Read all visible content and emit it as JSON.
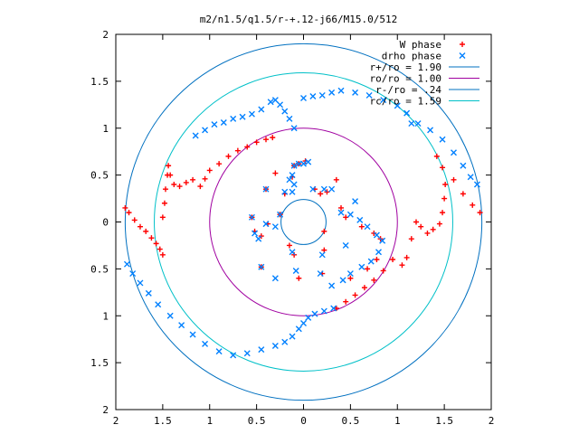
{
  "chart_data": {
    "type": "scatter",
    "title": "m2/n1.5/q1.5/r-+.12-j66/M15.0/512",
    "xlim": [
      -2,
      2
    ],
    "ylim": [
      -2,
      2
    ],
    "x_tick_values": [
      -2,
      -1.5,
      -1,
      -0.5,
      0,
      0.5,
      1,
      1.5,
      2
    ],
    "x_tick_labels": [
      "2",
      "1.5",
      "1",
      "0.5",
      "0",
      "0.5",
      "1",
      "1.5",
      "2"
    ],
    "y_tick_values": [
      2,
      1.5,
      1,
      0.5,
      0,
      -0.5,
      -1,
      -1.5,
      -2
    ],
    "y_tick_labels": [
      "2",
      "1.5",
      "1",
      "0.5",
      "0",
      "0.5",
      "1",
      "1.5",
      "2"
    ],
    "legend_position": "top-right",
    "series": [
      {
        "name": "W phase",
        "marker": "plus",
        "color": "#ff0000",
        "points": [
          [
            -1.9,
            0.15
          ],
          [
            -1.86,
            0.1
          ],
          [
            -1.8,
            0.02
          ],
          [
            -1.74,
            -0.05
          ],
          [
            -1.68,
            -0.1
          ],
          [
            -1.62,
            -0.17
          ],
          [
            -1.57,
            -0.23
          ],
          [
            -1.53,
            -0.29
          ],
          [
            -1.5,
            -0.35
          ],
          [
            -1.5,
            0.05
          ],
          [
            -1.48,
            0.2
          ],
          [
            -1.47,
            0.35
          ],
          [
            -1.45,
            0.5
          ],
          [
            -1.44,
            0.6
          ],
          [
            -1.42,
            0.5
          ],
          [
            -1.38,
            0.4
          ],
          [
            -1.32,
            0.38
          ],
          [
            -1.25,
            0.42
          ],
          [
            -1.18,
            0.45
          ],
          [
            -1.1,
            0.38
          ],
          [
            -1.05,
            0.46
          ],
          [
            -1.0,
            0.55
          ],
          [
            -0.9,
            0.62
          ],
          [
            -0.8,
            0.7
          ],
          [
            -0.7,
            0.76
          ],
          [
            -0.6,
            0.8
          ],
          [
            -0.5,
            0.85
          ],
          [
            -0.4,
            0.88
          ],
          [
            -0.33,
            0.9
          ],
          [
            0.35,
            -0.92
          ],
          [
            0.45,
            -0.85
          ],
          [
            0.55,
            -0.78
          ],
          [
            0.65,
            -0.7
          ],
          [
            0.75,
            -0.62
          ],
          [
            0.85,
            -0.52
          ],
          [
            0.95,
            -0.4
          ],
          [
            1.05,
            -0.46
          ],
          [
            1.1,
            -0.38
          ],
          [
            1.15,
            -0.18
          ],
          [
            1.2,
            0.0
          ],
          [
            1.25,
            -0.05
          ],
          [
            1.32,
            -0.12
          ],
          [
            1.38,
            -0.08
          ],
          [
            1.45,
            -0.02
          ],
          [
            1.48,
            0.1
          ],
          [
            1.5,
            0.25
          ],
          [
            1.51,
            0.4
          ],
          [
            1.48,
            0.58
          ],
          [
            1.42,
            0.7
          ],
          [
            1.6,
            0.45
          ],
          [
            1.7,
            0.3
          ],
          [
            1.8,
            0.18
          ],
          [
            1.88,
            0.1
          ],
          [
            -0.55,
            0.05
          ],
          [
            -0.52,
            -0.1
          ],
          [
            -0.45,
            -0.15
          ],
          [
            -0.4,
            0.35
          ],
          [
            -0.38,
            -0.02
          ],
          [
            -0.3,
            0.52
          ],
          [
            -0.25,
            0.08
          ],
          [
            -0.2,
            0.3
          ],
          [
            -0.15,
            -0.25
          ],
          [
            -0.12,
            0.48
          ],
          [
            -0.1,
            0.6
          ],
          [
            -0.05,
            0.62
          ],
          [
            0.02,
            0.65
          ],
          [
            0.12,
            0.35
          ],
          [
            0.18,
            0.3
          ],
          [
            0.25,
            0.32
          ],
          [
            0.22,
            -0.1
          ],
          [
            0.22,
            -0.3
          ],
          [
            0.2,
            -0.55
          ],
          [
            0.35,
            0.45
          ],
          [
            0.4,
            0.15
          ],
          [
            0.45,
            0.05
          ],
          [
            0.62,
            -0.05
          ],
          [
            0.75,
            -0.12
          ],
          [
            0.82,
            -0.18
          ],
          [
            0.78,
            -0.4
          ],
          [
            0.68,
            -0.5
          ],
          [
            0.5,
            -0.6
          ],
          [
            -0.1,
            -0.35
          ],
          [
            -0.05,
            -0.6
          ],
          [
            -0.45,
            -0.48
          ]
        ]
      },
      {
        "name": "drho phase",
        "marker": "cross",
        "color": "#0080ff",
        "points": [
          [
            -1.88,
            -0.45
          ],
          [
            -1.82,
            -0.55
          ],
          [
            -1.74,
            -0.65
          ],
          [
            -1.65,
            -0.76
          ],
          [
            -1.55,
            -0.88
          ],
          [
            -1.42,
            -1.0
          ],
          [
            -1.3,
            -1.1
          ],
          [
            -1.18,
            -1.2
          ],
          [
            -1.05,
            -1.3
          ],
          [
            -0.9,
            -1.38
          ],
          [
            -0.75,
            -1.42
          ],
          [
            -0.6,
            -1.4
          ],
          [
            -0.45,
            -1.36
          ],
          [
            -0.3,
            -1.32
          ],
          [
            -0.2,
            -1.28
          ],
          [
            -0.12,
            -1.22
          ],
          [
            -0.05,
            -1.14
          ],
          [
            0.0,
            -1.08
          ],
          [
            0.05,
            -1.02
          ],
          [
            0.12,
            -0.98
          ],
          [
            0.22,
            -0.95
          ],
          [
            0.32,
            -0.92
          ],
          [
            -0.1,
            1.0
          ],
          [
            -0.15,
            1.1
          ],
          [
            -0.2,
            1.18
          ],
          [
            -0.25,
            1.25
          ],
          [
            -0.3,
            1.3
          ],
          [
            -0.35,
            1.28
          ],
          [
            -0.45,
            1.2
          ],
          [
            -0.55,
            1.15
          ],
          [
            -0.65,
            1.12
          ],
          [
            -0.75,
            1.1
          ],
          [
            -0.85,
            1.06
          ],
          [
            -0.95,
            1.04
          ],
          [
            -1.05,
            0.98
          ],
          [
            -1.15,
            0.92
          ],
          [
            0.0,
            1.32
          ],
          [
            0.1,
            1.34
          ],
          [
            0.2,
            1.35
          ],
          [
            0.3,
            1.38
          ],
          [
            0.4,
            1.4
          ],
          [
            0.55,
            1.38
          ],
          [
            0.7,
            1.35
          ],
          [
            0.85,
            1.3
          ],
          [
            1.0,
            1.24
          ],
          [
            1.1,
            1.16
          ],
          [
            1.15,
            1.05
          ],
          [
            1.22,
            1.05
          ],
          [
            1.35,
            0.98
          ],
          [
            1.48,
            0.88
          ],
          [
            1.6,
            0.74
          ],
          [
            1.7,
            0.6
          ],
          [
            1.78,
            0.48
          ],
          [
            1.85,
            0.4
          ],
          [
            -0.55,
            0.05
          ],
          [
            -0.52,
            -0.12
          ],
          [
            -0.48,
            -0.18
          ],
          [
            -0.4,
            0.35
          ],
          [
            -0.4,
            -0.02
          ],
          [
            -0.3,
            -0.05
          ],
          [
            -0.25,
            0.08
          ],
          [
            -0.2,
            0.32
          ],
          [
            -0.15,
            0.45
          ],
          [
            -0.12,
            0.5
          ],
          [
            -0.1,
            0.6
          ],
          [
            -0.05,
            0.62
          ],
          [
            0.0,
            0.62
          ],
          [
            0.05,
            0.64
          ],
          [
            -0.1,
            0.4
          ],
          [
            -0.12,
            0.32
          ],
          [
            0.1,
            0.35
          ],
          [
            0.2,
            -0.35
          ],
          [
            0.18,
            -0.55
          ],
          [
            0.22,
            0.35
          ],
          [
            0.3,
            0.35
          ],
          [
            0.4,
            0.1
          ],
          [
            0.5,
            0.08
          ],
          [
            0.6,
            0.02
          ],
          [
            0.68,
            -0.05
          ],
          [
            0.78,
            -0.14
          ],
          [
            0.84,
            -0.2
          ],
          [
            0.8,
            -0.32
          ],
          [
            0.72,
            -0.42
          ],
          [
            0.62,
            -0.48
          ],
          [
            0.5,
            -0.55
          ],
          [
            0.42,
            -0.62
          ],
          [
            0.3,
            -0.68
          ],
          [
            -0.12,
            -0.32
          ],
          [
            -0.08,
            -0.52
          ],
          [
            -0.3,
            -0.6
          ],
          [
            -0.45,
            -0.48
          ],
          [
            0.45,
            -0.25
          ],
          [
            0.55,
            0.22
          ]
        ]
      }
    ],
    "circles": [
      {
        "name": "r+/ro = 1.90",
        "radius": 1.9,
        "color": "#0070c0"
      },
      {
        "name": "ro/ro = 1.00",
        "radius": 1.0,
        "color": "#a000a0"
      },
      {
        "name": "r-/ro = .24",
        "radius": 0.24,
        "color": "#0070c0"
      },
      {
        "name": "rc/ro = 1.59",
        "radius": 1.59,
        "color": "#00c0c8"
      }
    ]
  }
}
